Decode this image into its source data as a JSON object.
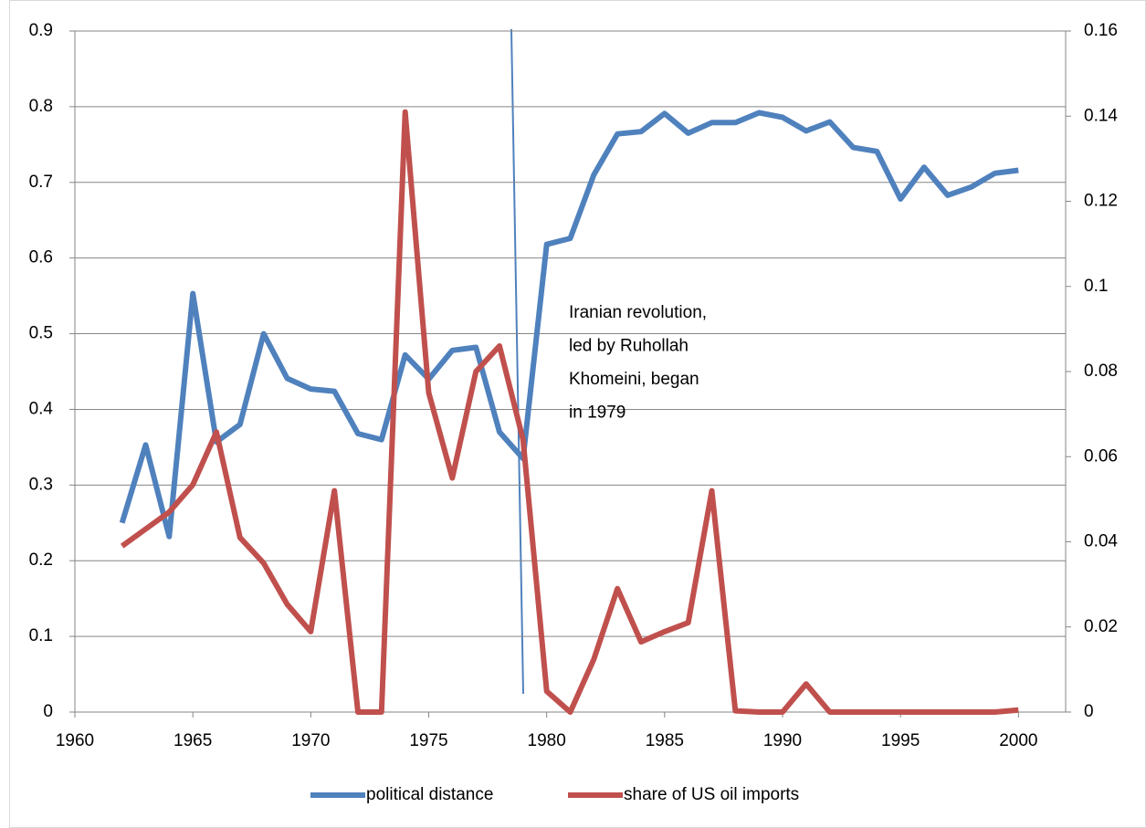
{
  "chart_data": {
    "type": "line",
    "x": [
      1962,
      1963,
      1964,
      1965,
      1966,
      1967,
      1968,
      1969,
      1970,
      1971,
      1972,
      1973,
      1974,
      1975,
      1976,
      1977,
      1978,
      1979,
      1980,
      1981,
      1982,
      1983,
      1984,
      1985,
      1986,
      1987,
      1988,
      1989,
      1990,
      1991,
      1992,
      1993,
      1994,
      1995,
      1996,
      1997,
      1998,
      1999,
      2000
    ],
    "series": [
      {
        "name": "political distance",
        "color": "#4f81bd",
        "values": [
          0.25,
          0.353,
          0.232,
          0.553,
          0.357,
          0.38,
          0.5,
          0.441,
          0.427,
          0.424,
          0.368,
          0.36,
          0.472,
          0.44,
          0.478,
          0.482,
          0.37,
          0.335,
          0.618,
          0.626,
          0.71,
          0.764,
          0.767,
          0.791,
          0.765,
          0.779,
          0.779,
          0.792,
          0.786,
          0.768,
          0.78,
          0.746,
          0.741,
          0.678,
          0.72,
          0.683,
          0.694,
          0.712,
          0.716
        ]
      },
      {
        "name": "share of US oil imports",
        "color": "#c0504d",
        "axis": "y2",
        "values": [
          0.039,
          0.043,
          0.047,
          0.0534,
          0.0658,
          0.041,
          0.035,
          0.0253,
          0.0189,
          0.052,
          0,
          0,
          0.141,
          0.075,
          0.055,
          0.08,
          0.086,
          0.064,
          0.0049,
          0,
          0.0124,
          0.029,
          0.0165,
          0.0189,
          0.021,
          0.052,
          0.0003,
          0,
          0,
          0.0066,
          0,
          0,
          0,
          0,
          0,
          0,
          0,
          0,
          0.0005
        ]
      }
    ],
    "xlim": [
      1960,
      2002
    ],
    "xticks": [
      1960,
      1965,
      1970,
      1975,
      1980,
      1985,
      1990,
      1995,
      2000
    ],
    "ylim": [
      0,
      0.9
    ],
    "yticks": [
      0,
      0.1,
      0.2,
      0.3,
      0.4,
      0.5,
      0.6,
      0.7,
      0.8,
      0.9
    ],
    "y2lim": [
      0,
      0.16
    ],
    "y2ticks": [
      0,
      0.02,
      0.04,
      0.06,
      0.08,
      0.1,
      0.12,
      0.14,
      0.16
    ],
    "grid": true,
    "legend": "bottom",
    "annotation": [
      "Iranian revolution,",
      "led by Ruhollah",
      "Khomeini, began",
      "in 1979"
    ]
  }
}
